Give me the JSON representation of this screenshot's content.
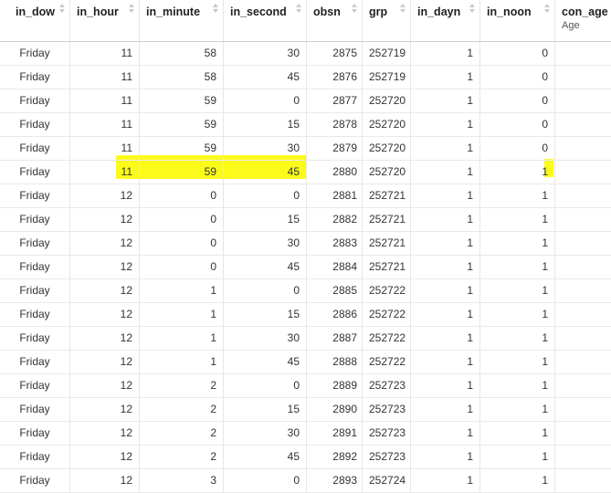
{
  "columns": [
    {
      "key": "in_dow",
      "label": "in_dow",
      "sub": ""
    },
    {
      "key": "in_hour",
      "label": "in_hour",
      "sub": ""
    },
    {
      "key": "in_minute",
      "label": "in_minute",
      "sub": ""
    },
    {
      "key": "in_second",
      "label": "in_second",
      "sub": ""
    },
    {
      "key": "obsn",
      "label": "obsn",
      "sub": ""
    },
    {
      "key": "grp",
      "label": "grp",
      "sub": ""
    },
    {
      "key": "in_dayn",
      "label": "in_dayn",
      "sub": ""
    },
    {
      "key": "in_noon",
      "label": "in_noon",
      "sub": ""
    },
    {
      "key": "con_age",
      "label": "con_age",
      "sub": "Age"
    }
  ],
  "highlight_color": "#fbfb1b",
  "highlighted_row_index": 5,
  "rows": [
    [
      "Friday",
      "11",
      "58",
      "30",
      "2875",
      "252719",
      "1",
      "0",
      ""
    ],
    [
      "Friday",
      "11",
      "58",
      "45",
      "2876",
      "252719",
      "1",
      "0",
      ""
    ],
    [
      "Friday",
      "11",
      "59",
      "0",
      "2877",
      "252720",
      "1",
      "0",
      ""
    ],
    [
      "Friday",
      "11",
      "59",
      "15",
      "2878",
      "252720",
      "1",
      "0",
      ""
    ],
    [
      "Friday",
      "11",
      "59",
      "30",
      "2879",
      "252720",
      "1",
      "0",
      ""
    ],
    [
      "Friday",
      "11",
      "59",
      "45",
      "2880",
      "252720",
      "1",
      "1",
      ""
    ],
    [
      "Friday",
      "12",
      "0",
      "0",
      "2881",
      "252721",
      "1",
      "1",
      ""
    ],
    [
      "Friday",
      "12",
      "0",
      "15",
      "2882",
      "252721",
      "1",
      "1",
      ""
    ],
    [
      "Friday",
      "12",
      "0",
      "30",
      "2883",
      "252721",
      "1",
      "1",
      ""
    ],
    [
      "Friday",
      "12",
      "0",
      "45",
      "2884",
      "252721",
      "1",
      "1",
      ""
    ],
    [
      "Friday",
      "12",
      "1",
      "0",
      "2885",
      "252722",
      "1",
      "1",
      ""
    ],
    [
      "Friday",
      "12",
      "1",
      "15",
      "2886",
      "252722",
      "1",
      "1",
      ""
    ],
    [
      "Friday",
      "12",
      "1",
      "30",
      "2887",
      "252722",
      "1",
      "1",
      ""
    ],
    [
      "Friday",
      "12",
      "1",
      "45",
      "2888",
      "252722",
      "1",
      "1",
      ""
    ],
    [
      "Friday",
      "12",
      "2",
      "0",
      "2889",
      "252723",
      "1",
      "1",
      ""
    ],
    [
      "Friday",
      "12",
      "2",
      "15",
      "2890",
      "252723",
      "1",
      "1",
      ""
    ],
    [
      "Friday",
      "12",
      "2",
      "30",
      "2891",
      "252723",
      "1",
      "1",
      ""
    ],
    [
      "Friday",
      "12",
      "2",
      "45",
      "2892",
      "252723",
      "1",
      "1",
      ""
    ],
    [
      "Friday",
      "12",
      "3",
      "0",
      "2893",
      "252724",
      "1",
      "1",
      ""
    ]
  ]
}
